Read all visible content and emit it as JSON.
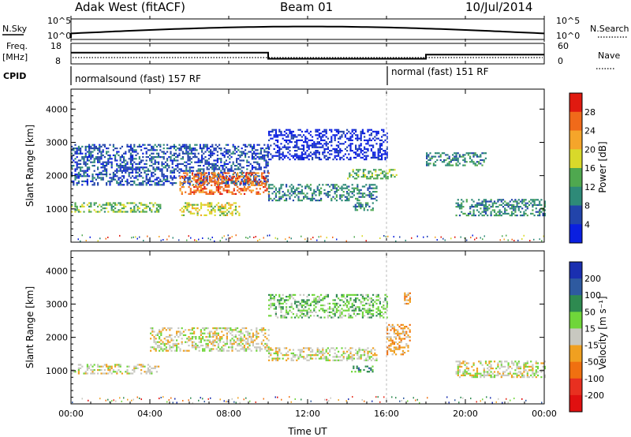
{
  "header": {
    "station": "Adak West (fitACF)",
    "beam": "Beam 01",
    "date": "10/Jul/2014"
  },
  "top_panels": {
    "nsky_label": "N.Sky",
    "nsky_ticks": [
      "10^5",
      "10^0"
    ],
    "nsearch_label": "N.Search",
    "nsearch_ticks": [
      "10^5",
      "10^0"
    ],
    "freq_label_1": "Freq.",
    "freq_label_2": "[MHz]",
    "freq_ticks": [
      "18",
      "8"
    ],
    "nave_label": "Nave",
    "nave_ticks": [
      "60",
      "0"
    ],
    "cpid_label": "CPID",
    "cpid_1": "normalsound (fast) 157 RF",
    "cpid_2": "normal (fast) 151 RF",
    "freq_steps": [
      {
        "from_hour": 0,
        "to_hour": 10,
        "freq_mhz": 13.5
      },
      {
        "from_hour": 10,
        "to_hour": 18,
        "freq_mhz": 10.5
      },
      {
        "from_hour": 18,
        "to_hour": 24,
        "freq_mhz": 12.5
      }
    ]
  },
  "x_axis": {
    "label": "Time UT",
    "ticks": [
      "00:00",
      "04:00",
      "08:00",
      "12:00",
      "16:00",
      "20:00",
      "00:00"
    ]
  },
  "power_panel": {
    "ylabel": "Slant Range [km]",
    "yticks": [
      "1000",
      "2000",
      "3000",
      "4000"
    ],
    "cbar_label": "Power [dB]",
    "cbar_ticks": [
      "4",
      "8",
      "12",
      "16",
      "20",
      "24",
      "28"
    ],
    "cbar_colors": [
      "#0a1fe0",
      "#2244aa",
      "#2e8a78",
      "#4fa84f",
      "#d9d92a",
      "#f5a52a",
      "#f06a1a",
      "#e01a10"
    ]
  },
  "velocity_panel": {
    "ylabel": "Slant Range [km]",
    "yticks": [
      "1000",
      "2000",
      "3000",
      "4000"
    ],
    "cbar_label": "Velocity [m s⁻¹]",
    "cbar_ticks": [
      "200",
      "100",
      "50",
      "15",
      "-15",
      "-50",
      "-100",
      "-200"
    ],
    "cbar_colors": [
      "#1a2fb0",
      "#2e5aa0",
      "#2e8a50",
      "#6fd63a",
      "#c8c8c0",
      "#f0a020",
      "#f07010",
      "#e83020",
      "#e01010"
    ]
  },
  "chart_data": {
    "type": "heatmap",
    "x_unit": "hours UT",
    "xlim": [
      0,
      24
    ],
    "ylim_km": [
      0,
      4600
    ],
    "cpid_change_hour": 16,
    "power_echo_bands": [
      {
        "t0": 0,
        "t1": 10,
        "r0": 1750,
        "r1": 2950,
        "level": 1
      },
      {
        "t0": 5.5,
        "t1": 10,
        "r0": 1450,
        "r1": 2100,
        "level": 6
      },
      {
        "t0": 0,
        "t1": 4.5,
        "r0": 900,
        "r1": 1200,
        "level": 3
      },
      {
        "t0": 5.5,
        "t1": 8.5,
        "r0": 800,
        "r1": 1200,
        "level": 4
      },
      {
        "t0": 10,
        "t1": 15.5,
        "r0": 1250,
        "r1": 1750,
        "level": 2
      },
      {
        "t0": 10,
        "t1": 16,
        "r0": 2500,
        "r1": 3400,
        "level": 0
      },
      {
        "t0": 14,
        "t1": 16.5,
        "r0": 1900,
        "r1": 2200,
        "level": 3
      },
      {
        "t0": 14.3,
        "t1": 15.3,
        "r0": 950,
        "r1": 1200,
        "level": 2
      },
      {
        "t0": 18,
        "t1": 21,
        "r0": 2300,
        "r1": 2700,
        "level": 2
      },
      {
        "t0": 19.5,
        "t1": 24,
        "r0": 800,
        "r1": 1300,
        "level": 2
      }
    ],
    "velocity_echo_bands": [
      {
        "t0": 0,
        "t1": 4.5,
        "r0": 900,
        "r1": 1200,
        "level": 4
      },
      {
        "t0": 4,
        "t1": 10,
        "r0": 1600,
        "r1": 2300,
        "level": 4
      },
      {
        "t0": 10,
        "t1": 15.5,
        "r0": 1300,
        "r1": 1700,
        "level": 4
      },
      {
        "t0": 10,
        "t1": 16,
        "r0": 2600,
        "r1": 3300,
        "level": 5
      },
      {
        "t0": 14.2,
        "t1": 15.3,
        "r0": 950,
        "r1": 1150,
        "level": 6
      },
      {
        "t0": 16,
        "t1": 17.2,
        "r0": 1500,
        "r1": 2400,
        "level": 3
      },
      {
        "t0": 16.8,
        "t1": 17.2,
        "r0": 3000,
        "r1": 3350,
        "level": 3
      },
      {
        "t0": 19.5,
        "t1": 24,
        "r0": 800,
        "r1": 1300,
        "level": 4
      }
    ]
  }
}
